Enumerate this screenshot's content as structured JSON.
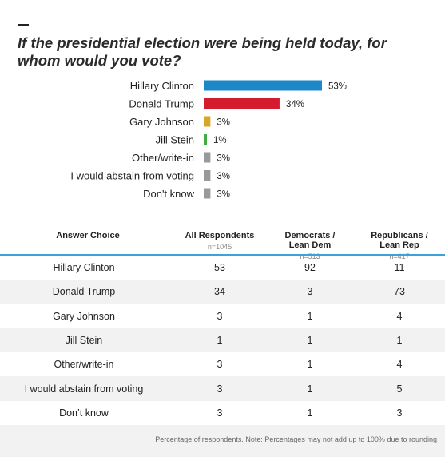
{
  "question": "If the presidential election were being held today, for whom would you vote?",
  "colors": {
    "clinton": "#1c87c9",
    "trump": "#d31c2e",
    "johnson": "#d6a82a",
    "stein": "#3fae3f",
    "other": "#999999",
    "rule": "#3ba3d8"
  },
  "chart_data": {
    "type": "bar",
    "orientation": "horizontal",
    "categories": [
      "Hillary Clinton",
      "Donald Trump",
      "Gary Johnson",
      "Jill Stein",
      "Other/write-in",
      "I would abstain from voting",
      "Don't know"
    ],
    "values": [
      53,
      34,
      3,
      1,
      3,
      3,
      3
    ],
    "value_labels": [
      "53%",
      "34%",
      "3%",
      "1%",
      "3%",
      "3%",
      "3%"
    ],
    "bar_colors": [
      "#1c87c9",
      "#d31c2e",
      "#d6a82a",
      "#3fae3f",
      "#999999",
      "#999999",
      "#999999"
    ],
    "xlim": [
      0,
      100
    ],
    "grid": false,
    "title": "If the presidential election were being held today, for whom would you vote?"
  },
  "table": {
    "headers": [
      {
        "label": "Answer Choice",
        "n": ""
      },
      {
        "label": "All Respondents",
        "n": "n=1045"
      },
      {
        "label": "Democrats /\nLean Dem",
        "n": "n=513"
      },
      {
        "label": "Republicans /\nLean Rep",
        "n": "n=417"
      }
    ],
    "rows": [
      [
        "Hillary Clinton",
        "53",
        "92",
        "11"
      ],
      [
        "Donald Trump",
        "34",
        "3",
        "73"
      ],
      [
        "Gary Johnson",
        "3",
        "1",
        "4"
      ],
      [
        "Jill Stein",
        "1",
        "1",
        "1"
      ],
      [
        "Other/write-in",
        "3",
        "1",
        "4"
      ],
      [
        "I would abstain from voting",
        "3",
        "1",
        "5"
      ],
      [
        "Don’t know",
        "3",
        "1",
        "3"
      ]
    ]
  },
  "note": "Percentage of respondents. Note: Percentages may not add up to 100% due to rounding"
}
